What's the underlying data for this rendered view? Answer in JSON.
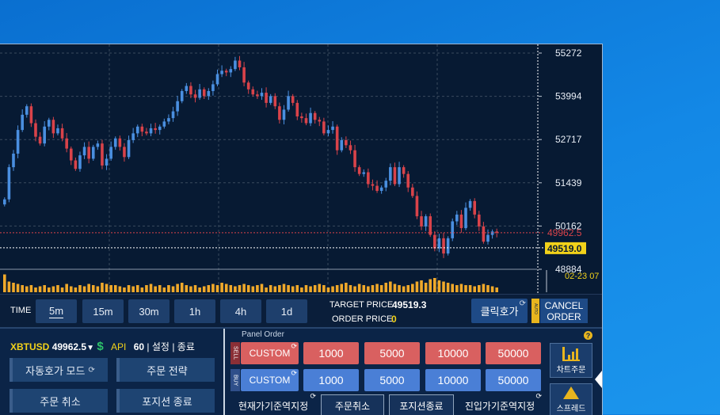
{
  "colors": {
    "bull": "#4a8fe0",
    "bear": "#d9434a",
    "grid": "#3a4a5e",
    "bg": "#071a33",
    "accent": "#f2d21a",
    "sell": "#d96060",
    "buy": "#4a7fd6"
  },
  "chart": {
    "y_axis_labels": [
      "55272",
      "53994",
      "52717",
      "51439",
      "50162",
      "48884"
    ],
    "current_price_tag": "49962.5",
    "crosshair_price_tag": "49519.0",
    "crosshair_time": "02-23 07",
    "candles_close": [
      50950,
      51900,
      52300,
      53000,
      53450,
      53700,
      53200,
      52800,
      52600,
      53100,
      53300,
      52900,
      53050,
      52750,
      52450,
      52100,
      51850,
      52250,
      52500,
      52150,
      52500,
      52600,
      51950,
      52150,
      52500,
      52750,
      52500,
      52200,
      52700,
      52900,
      53100,
      52950,
      52900,
      53050,
      53000,
      53100,
      53250,
      53350,
      53550,
      53850,
      54150,
      54300,
      54050,
      53950,
      54200,
      54000,
      54150,
      54350,
      54650,
      54750,
      54700,
      54800,
      55050,
      54850,
      54400,
      54200,
      54050,
      54000,
      54100,
      53800,
      54000,
      53700,
      53300,
      53600,
      54000,
      53800,
      53400,
      53350,
      53200,
      53500,
      53300,
      53250,
      52900,
      53000,
      53100,
      52400,
      52700,
      52550,
      52400,
      51900,
      51700,
      51750,
      51400,
      51350,
      51200,
      51300,
      51500,
      51900,
      51400,
      51900,
      51700,
      51300,
      51050,
      50450,
      50150,
      50450,
      49900,
      49500,
      49800,
      49350,
      49800,
      50300,
      50500,
      50100,
      50700,
      50900,
      50500,
      50150,
      49700,
      49900,
      50000,
      49962.5
    ],
    "volume_pct": [
      0.75,
      0.45,
      0.4,
      0.35,
      0.3,
      0.25,
      0.3,
      0.2,
      0.25,
      0.3,
      0.2,
      0.25,
      0.3,
      0.2,
      0.35,
      0.25,
      0.2,
      0.3,
      0.25,
      0.35,
      0.3,
      0.25,
      0.4,
      0.35,
      0.3,
      0.3,
      0.25,
      0.2,
      0.3,
      0.25,
      0.3,
      0.2,
      0.3,
      0.35,
      0.25,
      0.3,
      0.2,
      0.3,
      0.25,
      0.35,
      0.4,
      0.3,
      0.25,
      0.3,
      0.2,
      0.25,
      0.3,
      0.35,
      0.3,
      0.4,
      0.35,
      0.3,
      0.25,
      0.3,
      0.35,
      0.3,
      0.25,
      0.3,
      0.35,
      0.2,
      0.3,
      0.25,
      0.3,
      0.35,
      0.3,
      0.25,
      0.3,
      0.2,
      0.3,
      0.25,
      0.3,
      0.35,
      0.3,
      0.2,
      0.25,
      0.3,
      0.35,
      0.4,
      0.3,
      0.25,
      0.35,
      0.3,
      0.25,
      0.3,
      0.35,
      0.3,
      0.4,
      0.45,
      0.35,
      0.3,
      0.25,
      0.3,
      0.35,
      0.45,
      0.5,
      0.4,
      0.55,
      0.6,
      0.5,
      0.45,
      0.4,
      0.35,
      0.3,
      0.35,
      0.3,
      0.3,
      0.25,
      0.3,
      0.35,
      0.3,
      0.25,
      0.2
    ]
  },
  "timebar": {
    "label": "TIME",
    "intervals": [
      "5m",
      "15m",
      "30m",
      "1h",
      "4h",
      "1d"
    ],
    "target_price_label": "TARGET PRICE",
    "target_price": "49519.3",
    "order_price_label": "ORDER PRICE",
    "order_price": "0",
    "click_button": "클릭호가",
    "auto_tag": "AUTO",
    "cancel_button_line1": "CANCEL",
    "cancel_button_line2": "ORDER"
  },
  "left_panel": {
    "symbol": "XBTUSD",
    "price": "49962.5",
    "dollar": "$",
    "api_label": "API",
    "api_value": "60",
    "settings": "설정",
    "exit": "종료",
    "sep": "|",
    "buttons": [
      "자동호가 모드",
      "주문 전략",
      "주문 취소",
      "포지션 종료"
    ]
  },
  "panel_order": {
    "title": "Panel Order",
    "sell_tag": "SELL",
    "buy_tag": "BUY",
    "sell_custom": "CUSTOM",
    "buy_custom": "CUSTOM",
    "sizes": [
      "1000",
      "5000",
      "10000",
      "50000"
    ],
    "actions": [
      "현재가기준역지정",
      "주문취소",
      "포지션종료",
      "진입가기준역지정"
    ],
    "help": "?",
    "tools": [
      "차트주문",
      "스프레드"
    ]
  }
}
